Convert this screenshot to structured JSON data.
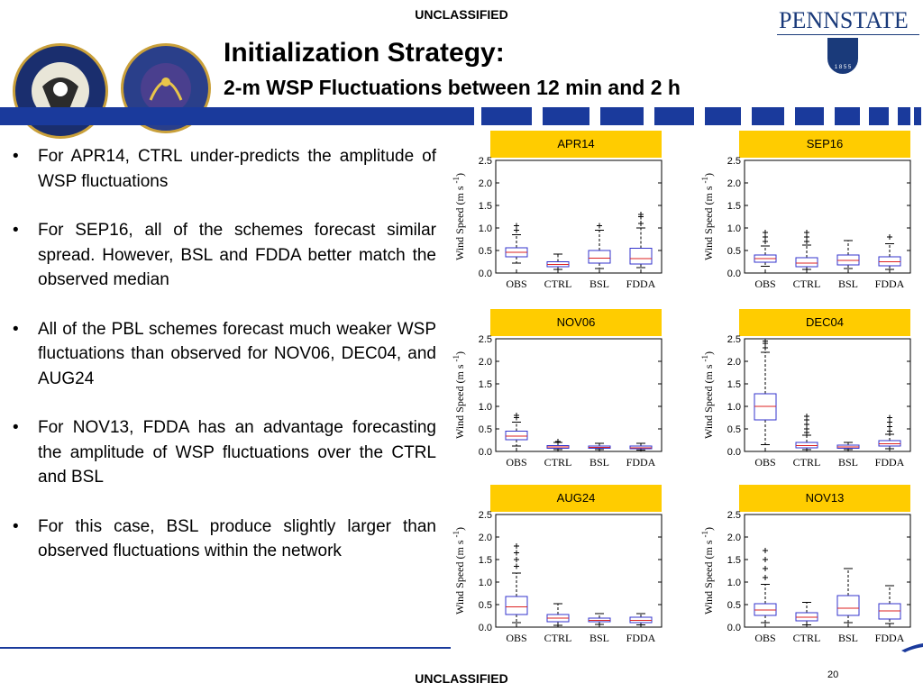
{
  "header": {
    "classification_top": "UNCLASSIFIED",
    "title": "Initialization Strategy:",
    "subtitle": "2-m WSP Fluctuations between 12 min and 2 h",
    "brand": "PENNSTATE",
    "brand_year": "1 8 5 5"
  },
  "footer": {
    "classification_bottom": "UNCLASSIFIED",
    "page_number": "20"
  },
  "bullets": [
    "For APR14, CTRL under-predicts the amplitude of WSP fluctuations",
    "For SEP16, all of the schemes forecast similar spread.  However, BSL and FDDA better match the observed median",
    "All of the PBL schemes forecast much weaker WSP fluctuations than observed for NOV06, DEC04, and AUG24",
    "For NOV13, FDDA has an advantage forecasting the amplitude of WSP fluctuations over the CTRL and BSL",
    "For this case, BSL produce slightly larger than observed fluctuations within the network"
  ],
  "colors": {
    "panel_title_bg": "#FFCC00",
    "box_edge": "#3333CC",
    "median": "#DD2222",
    "stripe": "#1a3a9c",
    "footer_line": "#1a3a9c"
  },
  "chart_data": [
    {
      "type": "boxplot",
      "title": "APR14",
      "ylabel": "Wind Speed (m s",
      "ylabel_sup": "-1",
      "ylim": [
        0,
        2.5
      ],
      "yticks": [
        "0.0",
        "0.5",
        "1.0",
        "1.5",
        "2.0",
        "2.5"
      ],
      "categories": [
        "OBS",
        "CTRL",
        "BSL",
        "FDDA"
      ],
      "boxes": [
        {
          "min": 0.22,
          "q1": 0.36,
          "median": 0.46,
          "q3": 0.56,
          "max": 0.85,
          "outliers": [
            0.95,
            1.05
          ]
        },
        {
          "min": 0.08,
          "q1": 0.14,
          "median": 0.19,
          "q3": 0.25,
          "max": 0.42,
          "outliers": []
        },
        {
          "min": 0.1,
          "q1": 0.22,
          "median": 0.33,
          "q3": 0.5,
          "max": 0.95,
          "outliers": [
            1.05
          ]
        },
        {
          "min": 0.12,
          "q1": 0.2,
          "median": 0.32,
          "q3": 0.55,
          "max": 1.0,
          "outliers": [
            1.1,
            1.25,
            1.3
          ]
        }
      ]
    },
    {
      "type": "boxplot",
      "title": "SEP16",
      "ylabel": "Wind Speed (m s",
      "ylabel_sup": "-1",
      "ylim": [
        0,
        2.5
      ],
      "yticks": [
        "0.0",
        "0.5",
        "1.0",
        "1.5",
        "2.0",
        "2.5"
      ],
      "categories": [
        "OBS",
        "CTRL",
        "BSL",
        "FDDA"
      ],
      "boxes": [
        {
          "min": 0.15,
          "q1": 0.24,
          "median": 0.32,
          "q3": 0.4,
          "max": 0.6,
          "outliers": [
            0.7,
            0.8,
            0.9
          ]
        },
        {
          "min": 0.08,
          "q1": 0.14,
          "median": 0.22,
          "q3": 0.34,
          "max": 0.62,
          "outliers": [
            0.7,
            0.8,
            0.9
          ]
        },
        {
          "min": 0.1,
          "q1": 0.18,
          "median": 0.28,
          "q3": 0.4,
          "max": 0.72,
          "outliers": []
        },
        {
          "min": 0.08,
          "q1": 0.16,
          "median": 0.25,
          "q3": 0.36,
          "max": 0.65,
          "outliers": [
            0.8
          ]
        }
      ]
    },
    {
      "type": "boxplot",
      "title": "NOV06",
      "ylabel": "Wind Speed (m s",
      "ylabel_sup": "-1",
      "ylim": [
        0,
        2.5
      ],
      "yticks": [
        "0.0",
        "0.5",
        "1.0",
        "1.5",
        "2.0",
        "2.5"
      ],
      "categories": [
        "OBS",
        "CTRL",
        "BSL",
        "FDDA"
      ],
      "boxes": [
        {
          "min": 0.12,
          "q1": 0.26,
          "median": 0.34,
          "q3": 0.45,
          "max": 0.65,
          "outliers": [
            0.75,
            0.8
          ]
        },
        {
          "min": 0.04,
          "q1": 0.07,
          "median": 0.1,
          "q3": 0.13,
          "max": 0.2,
          "outliers": [
            0.22
          ]
        },
        {
          "min": 0.04,
          "q1": 0.07,
          "median": 0.09,
          "q3": 0.12,
          "max": 0.18,
          "outliers": []
        },
        {
          "min": 0.03,
          "q1": 0.06,
          "median": 0.08,
          "q3": 0.12,
          "max": 0.18,
          "outliers": []
        }
      ]
    },
    {
      "type": "boxplot",
      "title": "DEC04",
      "ylabel": "Wind Speed (m s",
      "ylabel_sup": "-1",
      "ylim": [
        0,
        2.5
      ],
      "yticks": [
        "0.0",
        "0.5",
        "1.0",
        "1.5",
        "2.0",
        "2.5"
      ],
      "categories": [
        "OBS",
        "CTRL",
        "BSL",
        "FDDA"
      ],
      "boxes": [
        {
          "min": 0.15,
          "q1": 0.7,
          "median": 1.0,
          "q3": 1.28,
          "max": 2.2,
          "outliers": [
            2.3,
            2.4,
            2.45
          ]
        },
        {
          "min": 0.04,
          "q1": 0.08,
          "median": 0.13,
          "q3": 0.2,
          "max": 0.36,
          "outliers": [
            0.42,
            0.5,
            0.6,
            0.7,
            0.78
          ]
        },
        {
          "min": 0.04,
          "q1": 0.07,
          "median": 0.1,
          "q3": 0.14,
          "max": 0.2,
          "outliers": []
        },
        {
          "min": 0.06,
          "q1": 0.12,
          "median": 0.17,
          "q3": 0.24,
          "max": 0.38,
          "outliers": [
            0.45,
            0.55,
            0.65,
            0.75
          ]
        }
      ]
    },
    {
      "type": "boxplot",
      "title": "AUG24",
      "ylabel": "Wind Speed (m s",
      "ylabel_sup": "-1",
      "ylim": [
        0,
        2.5
      ],
      "yticks": [
        "0.0",
        "0.5",
        "1.0",
        "1.5",
        "2.0",
        "2.5"
      ],
      "categories": [
        "OBS",
        "CTRL",
        "BSL",
        "FDDA"
      ],
      "boxes": [
        {
          "min": 0.1,
          "q1": 0.28,
          "median": 0.45,
          "q3": 0.68,
          "max": 1.2,
          "outliers": [
            1.35,
            1.5,
            1.65,
            1.8
          ]
        },
        {
          "min": 0.04,
          "q1": 0.12,
          "median": 0.2,
          "q3": 0.28,
          "max": 0.52,
          "outliers": []
        },
        {
          "min": 0.06,
          "q1": 0.12,
          "median": 0.15,
          "q3": 0.2,
          "max": 0.3,
          "outliers": []
        },
        {
          "min": 0.05,
          "q1": 0.1,
          "median": 0.15,
          "q3": 0.22,
          "max": 0.3,
          "outliers": []
        }
      ]
    },
    {
      "type": "boxplot",
      "title": "NOV13",
      "ylabel": "Wind Speed (m s",
      "ylabel_sup": "-1",
      "ylim": [
        0,
        2.5
      ],
      "yticks": [
        "0.0",
        "0.5",
        "1.0",
        "1.5",
        "2.0",
        "2.5"
      ],
      "categories": [
        "OBS",
        "CTRL",
        "BSL",
        "FDDA"
      ],
      "boxes": [
        {
          "min": 0.1,
          "q1": 0.26,
          "median": 0.38,
          "q3": 0.52,
          "max": 0.95,
          "outliers": [
            1.1,
            1.3,
            1.5,
            1.7
          ]
        },
        {
          "min": 0.05,
          "q1": 0.14,
          "median": 0.22,
          "q3": 0.32,
          "max": 0.55,
          "outliers": []
        },
        {
          "min": 0.1,
          "q1": 0.26,
          "median": 0.42,
          "q3": 0.7,
          "max": 1.3,
          "outliers": []
        },
        {
          "min": 0.08,
          "q1": 0.18,
          "median": 0.36,
          "q3": 0.52,
          "max": 0.92,
          "outliers": []
        }
      ]
    }
  ]
}
